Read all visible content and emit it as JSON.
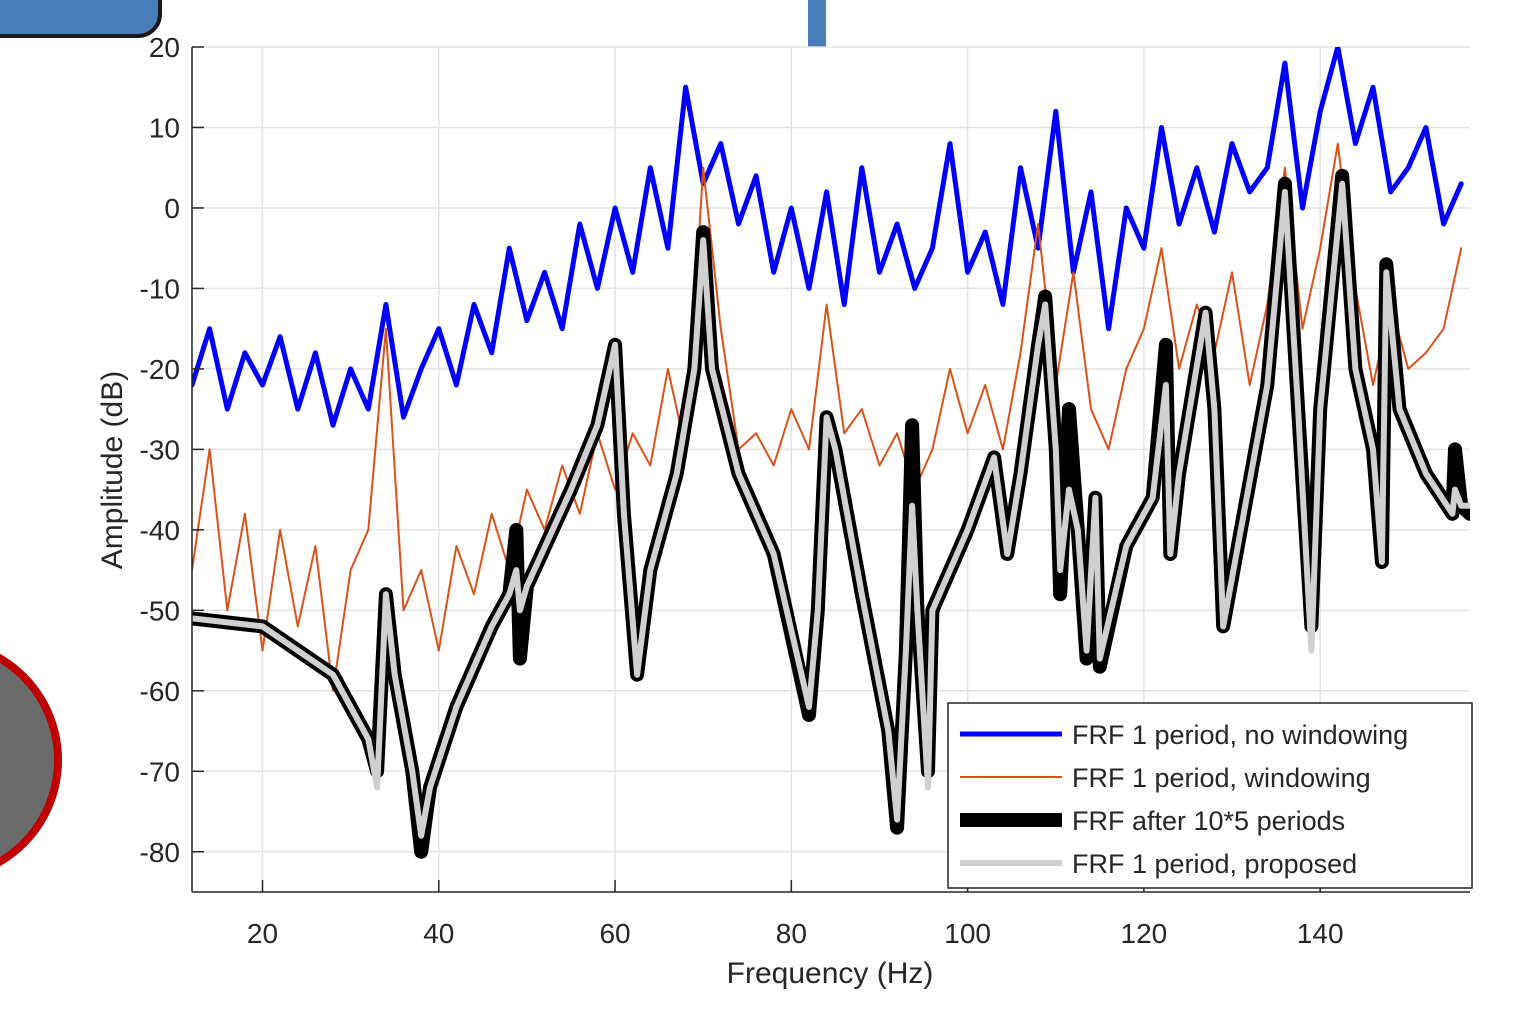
{
  "chart_data": {
    "type": "line",
    "xlabel": "Frequency (Hz)",
    "ylabel": "Amplitude (dB)",
    "xlim": [
      12,
      157
    ],
    "ylim": [
      -85,
      20
    ],
    "xticks": [
      20,
      40,
      60,
      80,
      100,
      120,
      140
    ],
    "yticks": [
      -80,
      -70,
      -60,
      -50,
      -40,
      -30,
      -20,
      -10,
      0,
      10,
      20
    ],
    "grid": true,
    "legend": "lower right",
    "series": [
      {
        "name": "FRF 1 period, no windowing",
        "color": "#0000ff",
        "width": 5,
        "x": [
          12,
          14,
          16,
          18,
          20,
          22,
          24,
          26,
          28,
          30,
          32,
          34,
          36,
          38,
          40,
          42,
          44,
          46,
          48,
          50,
          52,
          54,
          56,
          58,
          60,
          62,
          64,
          66,
          68,
          70,
          72,
          74,
          76,
          78,
          80,
          82,
          84,
          86,
          88,
          90,
          92,
          94,
          96,
          98,
          100,
          102,
          104,
          106,
          108,
          110,
          112,
          114,
          116,
          118,
          120,
          122,
          124,
          126,
          128,
          130,
          132,
          134,
          136,
          138,
          140,
          142,
          144,
          146,
          148,
          150,
          152,
          154,
          156
        ],
        "values": [
          -22,
          -15,
          -25,
          -18,
          -22,
          -16,
          -25,
          -18,
          -27,
          -20,
          -25,
          -12,
          -26,
          -20,
          -15,
          -22,
          -12,
          -18,
          -5,
          -14,
          -8,
          -15,
          -2,
          -10,
          0,
          -8,
          5,
          -5,
          15,
          3,
          8,
          -2,
          4,
          -8,
          0,
          -10,
          2,
          -12,
          5,
          -8,
          -2,
          -10,
          -5,
          8,
          -8,
          -3,
          -12,
          5,
          -5,
          12,
          -8,
          2,
          -15,
          0,
          -5,
          10,
          -2,
          5,
          -3,
          8,
          2,
          5,
          18,
          0,
          12,
          20,
          8,
          15,
          2,
          5,
          10,
          -2,
          3
        ]
      },
      {
        "name": "FRF 1 period, windowing",
        "color": "#d95319",
        "width": 2,
        "x": [
          12,
          14,
          16,
          18,
          20,
          22,
          24,
          26,
          28,
          30,
          32,
          34,
          36,
          38,
          40,
          42,
          44,
          46,
          48,
          50,
          52,
          54,
          56,
          58,
          60,
          62,
          64,
          66,
          68,
          70,
          72,
          74,
          76,
          78,
          80,
          82,
          84,
          86,
          88,
          90,
          92,
          94,
          96,
          98,
          100,
          102,
          104,
          106,
          108,
          110,
          112,
          114,
          116,
          118,
          120,
          122,
          124,
          126,
          128,
          130,
          132,
          134,
          136,
          138,
          140,
          142,
          144,
          146,
          148,
          150,
          152,
          154,
          156
        ],
        "values": [
          -45,
          -30,
          -50,
          -38,
          -55,
          -40,
          -52,
          -42,
          -60,
          -45,
          -40,
          -15,
          -50,
          -45,
          -55,
          -42,
          -48,
          -38,
          -45,
          -35,
          -40,
          -32,
          -38,
          -28,
          -35,
          -28,
          -32,
          -20,
          -30,
          5,
          -15,
          -30,
          -28,
          -32,
          -25,
          -30,
          -12,
          -28,
          -25,
          -32,
          -28,
          -35,
          -30,
          -20,
          -28,
          -22,
          -30,
          -18,
          -2,
          -22,
          -8,
          -25,
          -30,
          -20,
          -15,
          -5,
          -20,
          -12,
          -18,
          -8,
          -22,
          -12,
          5,
          -15,
          -5,
          8,
          -10,
          -22,
          -12,
          -20,
          -18,
          -15,
          -5
        ]
      },
      {
        "name": "FRF after 10*5 periods",
        "color": "#000000",
        "width": 14,
        "x": [
          12,
          20,
          28,
          32,
          33,
          34,
          35,
          37,
          38,
          39,
          42,
          46,
          48,
          48.8,
          49.2,
          50,
          55,
          58,
          60,
          61,
          62.5,
          64,
          67,
          69,
          70,
          71,
          74,
          78,
          82,
          83,
          84,
          85,
          88,
          91,
          92,
          93,
          93.7,
          94.3,
          95.5,
          96,
          100,
          103,
          104.5,
          106,
          108,
          108.8,
          110,
          110.5,
          111.5,
          112.5,
          113.5,
          114.5,
          115,
          118,
          121,
          122.5,
          123,
          124,
          127,
          128,
          129,
          131,
          134,
          136,
          137.5,
          139,
          140,
          142.5,
          144,
          146,
          147,
          147.5,
          149,
          152,
          155,
          155.3,
          156,
          157
        ],
        "values": [
          -51,
          -52,
          -58,
          -66,
          -70,
          -48,
          -58,
          -70,
          -80,
          -72,
          -62,
          -52,
          -48,
          -40,
          -56,
          -47,
          -35,
          -27,
          -17,
          -38,
          -58,
          -45,
          -33,
          -20,
          -3,
          -20,
          -33,
          -43,
          -63,
          -50,
          -26,
          -30,
          -48,
          -65,
          -77,
          -55,
          -27,
          -50,
          -70,
          -50,
          -40,
          -31,
          -43,
          -33,
          -17,
          -11,
          -30,
          -48,
          -25,
          -40,
          -56,
          -36,
          -57,
          -42,
          -36,
          -17,
          -43,
          -33,
          -13,
          -25,
          -52,
          -40,
          -22,
          3,
          -25,
          -52,
          -25,
          4,
          -20,
          -30,
          -44,
          -7,
          -25,
          -33,
          -38,
          -30,
          -37,
          -38
        ]
      },
      {
        "name": "FRF 1 period, proposed",
        "color": "#d0d0d0",
        "width": 6,
        "x": [
          12,
          20,
          28,
          32,
          33,
          34,
          35,
          37,
          38,
          39,
          42,
          46,
          48,
          48.8,
          49.2,
          50,
          55,
          58,
          60,
          61,
          62.5,
          64,
          67,
          69,
          70,
          71,
          74,
          78,
          82,
          83,
          84,
          85,
          88,
          91,
          92,
          93,
          93.7,
          94.3,
          95.5,
          96,
          100,
          103,
          104.5,
          106,
          108,
          108.8,
          110,
          110.5,
          111.5,
          112.5,
          113.5,
          114.5,
          115,
          118,
          121,
          122.5,
          123,
          124,
          127,
          128,
          129,
          131,
          134,
          136,
          137.5,
          139,
          140,
          142.5,
          144,
          146,
          147,
          147.5,
          149,
          152,
          155,
          155.3,
          156,
          157
        ],
        "values": [
          -51,
          -52,
          -58,
          -66,
          -72,
          -48,
          -58,
          -70,
          -78,
          -72,
          -62,
          -52,
          -48,
          -45,
          -50,
          -47,
          -35,
          -27,
          -17,
          -38,
          -58,
          -45,
          -33,
          -20,
          -4,
          -20,
          -33,
          -43,
          -62,
          -50,
          -26,
          -30,
          -48,
          -65,
          -76,
          -55,
          -37,
          -50,
          -72,
          -50,
          -40,
          -31,
          -43,
          -33,
          -17,
          -12,
          -30,
          -45,
          -35,
          -40,
          -55,
          -36,
          -56,
          -42,
          -36,
          -22,
          -43,
          -33,
          -13,
          -25,
          -52,
          -40,
          -22,
          2,
          -25,
          -55,
          -25,
          3,
          -20,
          -30,
          -44,
          -8,
          -25,
          -33,
          -38,
          -35,
          -37,
          -37
        ]
      }
    ]
  }
}
